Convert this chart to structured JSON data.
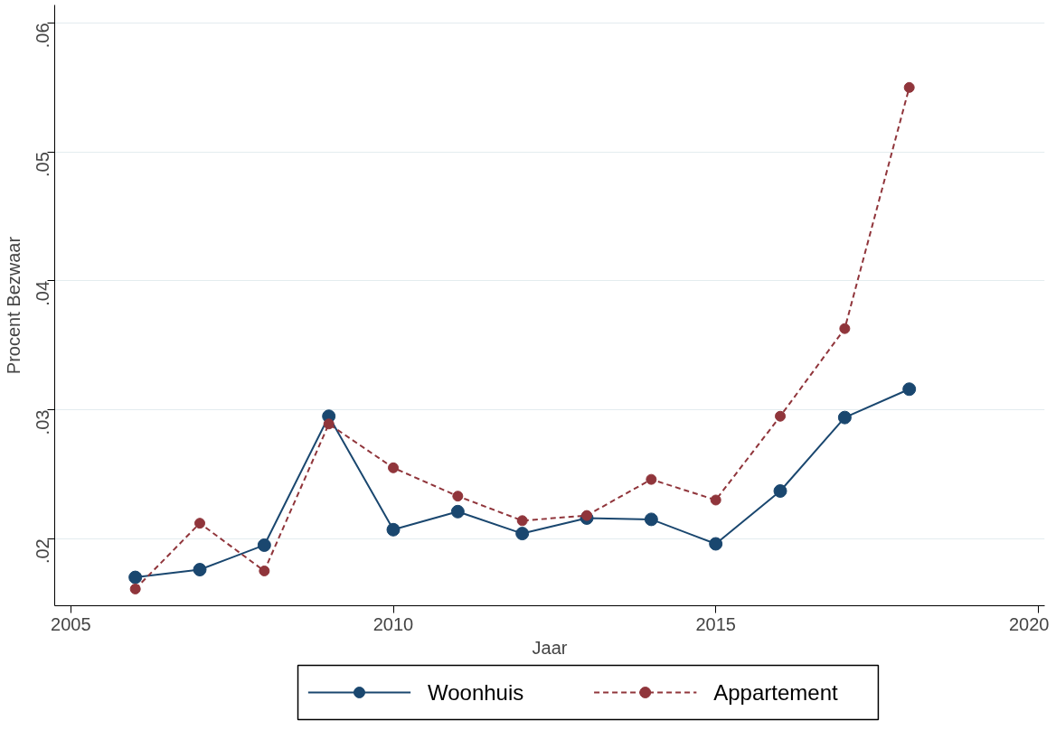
{
  "chart_data": {
    "type": "line",
    "xlabel": "Jaar",
    "ylabel": "Procent Bezwaar",
    "x": [
      2006,
      2007,
      2008,
      2009,
      2010,
      2011,
      2012,
      2013,
      2014,
      2015,
      2016,
      2017,
      2018
    ],
    "series": [
      {
        "name": "Woonhuis",
        "color": "#1a476f",
        "line_style": "solid",
        "values": [
          0.017,
          0.0176,
          0.0195,
          0.0295,
          0.0207,
          0.0221,
          0.0204,
          0.0216,
          0.0215,
          0.0196,
          0.0237,
          0.0294,
          0.0316
        ]
      },
      {
        "name": "Appartement",
        "color": "#90353b",
        "line_style": "dashed",
        "values": [
          0.0161,
          0.0212,
          0.0175,
          0.0289,
          0.0255,
          0.0233,
          0.0214,
          0.0218,
          0.0246,
          0.023,
          0.0295,
          0.0363,
          0.055
        ]
      }
    ],
    "xlim": [
      2004.75,
      2020.1
    ],
    "ylim": [
      0.0148,
      0.0614
    ],
    "xticks": [
      2005,
      2010,
      2015,
      2020
    ],
    "yticks": [
      {
        "value": 0.02,
        "label": ".02"
      },
      {
        "value": 0.03,
        "label": ".03"
      },
      {
        "value": 0.04,
        "label": ".04"
      },
      {
        "value": 0.05,
        "label": ".05"
      },
      {
        "value": 0.06,
        "label": ".06"
      }
    ],
    "grid": "y",
    "legend": "bottom",
    "marker": "circle"
  }
}
